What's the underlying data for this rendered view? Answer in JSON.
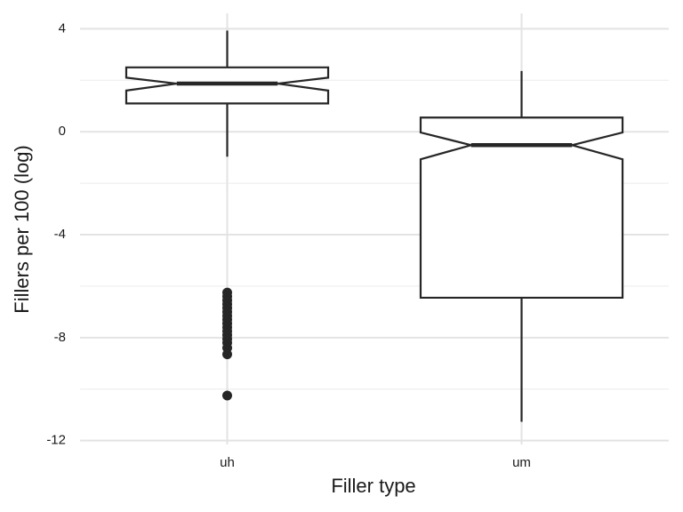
{
  "chart_data": {
    "type": "boxplot",
    "x_label": "Filler type",
    "y_label": "Fillers per 100 (log)",
    "categories": [
      "uh",
      "um"
    ],
    "boxes": [
      {
        "whisker_low": -0.97,
        "q1": 1.1,
        "notch_low": 1.6,
        "median": 1.87,
        "notch_high": 2.1,
        "q3": 2.5,
        "whisker_high": 3.93,
        "outliers": [
          -6.25,
          -6.4,
          -6.55,
          -6.7,
          -6.85,
          -7.0,
          -7.15,
          -7.3,
          -7.45,
          -7.6,
          -7.75,
          -7.9,
          -8.05,
          -8.2,
          -8.4,
          -8.65,
          -10.25
        ]
      },
      {
        "whisker_low": -11.27,
        "q1": -6.45,
        "notch_low": -1.07,
        "median": -0.52,
        "notch_high": -0.03,
        "q3": 0.55,
        "whisker_high": 2.36,
        "outliers": []
      }
    ],
    "color": "#262626",
    "ylim": [
      -12.15,
      4.6
    ],
    "yticks": [
      4,
      0,
      -4,
      -8,
      -12
    ],
    "minor_grid": [
      2,
      -2,
      -6,
      -10
    ],
    "grid": true
  }
}
